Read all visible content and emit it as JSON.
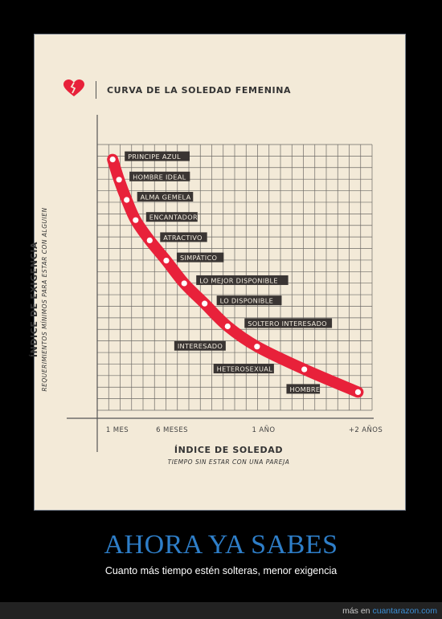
{
  "colors": {
    "background": "#000000",
    "poster": "#f3ead8",
    "curve": "#e8213a",
    "label_box": "#3a3533",
    "headline": "#2e7ec8",
    "link": "#3c8fd6"
  },
  "icons": {
    "logo": "broken-heart-icon"
  },
  "chart_data": {
    "type": "line",
    "title": "CURVA DE LA SOLEDAD FEMENINA",
    "ylabel": "ÍNDICE DE EXIGENCIA",
    "ylabel_sub": "REQUERIMIENTOS MÍNIMOS PARA ESTAR CON ALGUIEN",
    "xlabel": "ÍNDICE DE SOLEDAD",
    "xlabel_sub": "TIEMPO SIN ESTAR CON UNA PAREJA",
    "x_ticks": [
      "1 MES",
      "6 MESES",
      "1 AÑO",
      "+2 AÑOS"
    ],
    "grid": true,
    "points": [
      {
        "label": "PRINCIPE AZUL",
        "x": 0.01,
        "y": 0.96
      },
      {
        "label": "HOMBRE IDEAL",
        "x": 0.035,
        "y": 0.88
      },
      {
        "label": "ALMA GEMELA",
        "x": 0.065,
        "y": 0.8
      },
      {
        "label": "ENCANTADOR",
        "x": 0.1,
        "y": 0.72
      },
      {
        "label": "ATRACTIVO",
        "x": 0.155,
        "y": 0.64
      },
      {
        "label": "SIMPÁTICO",
        "x": 0.22,
        "y": 0.56
      },
      {
        "label": "LO MEJOR DISPONIBLE",
        "x": 0.29,
        "y": 0.47
      },
      {
        "label": "LO DISPONIBLE",
        "x": 0.37,
        "y": 0.39
      },
      {
        "label": "SOLTERO INTERESADO",
        "x": 0.46,
        "y": 0.3
      },
      {
        "label": "INTERESADO",
        "x": 0.575,
        "y": 0.22
      },
      {
        "label": "HETEROSEXUAL",
        "x": 0.76,
        "y": 0.13
      },
      {
        "label": "HOMBRE",
        "x": 0.97,
        "y": 0.04
      }
    ]
  },
  "headline": "AHORA YA SABES",
  "subline": "Cuanto más tiempo estén solteras, menor exigencia",
  "footer": {
    "prefix": "más en",
    "link": "cuantarazon.com"
  }
}
